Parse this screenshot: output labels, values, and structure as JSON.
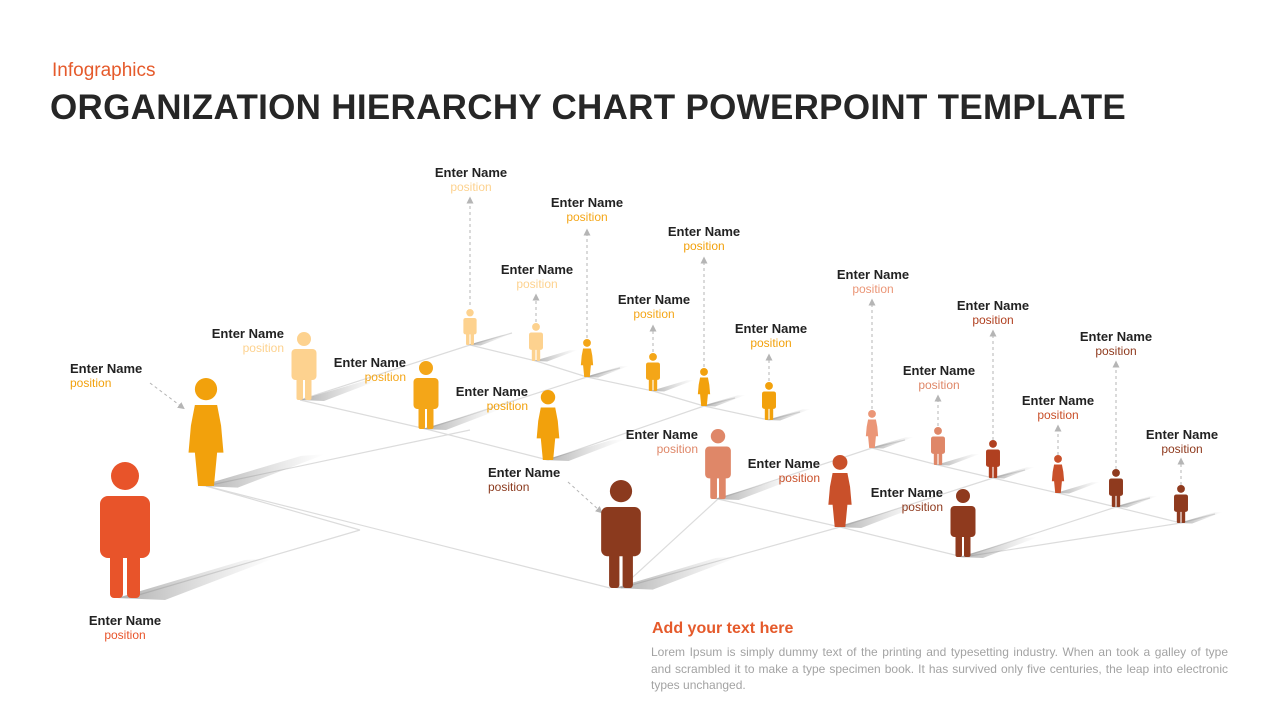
{
  "header": {
    "subtitle": "Infographics",
    "title": "ORGANIZATION HIERARCHY CHART POWERPOINT TEMPLATE"
  },
  "colors": {
    "accent": "#e55a2b",
    "level0": "#e8542a",
    "level1": "#f2a10c",
    "level2_light": "#fdd28f",
    "level2": "#f4a618",
    "ceo_brown": "#8b3a1e",
    "salmon_light": "#eb9677",
    "salmon": "#df8768",
    "rust": "#c9502a",
    "brown_dark": "#8f3a1e"
  },
  "people": [
    {
      "name": "Enter Name",
      "position": "position",
      "color": "#e8542a",
      "gender": "male"
    },
    {
      "name": "Enter Name",
      "position": "position",
      "color": "#f2a10c",
      "gender": "female"
    },
    {
      "name": "Enter Name",
      "position": "position",
      "color": "#fdd28f",
      "gender": "male"
    },
    {
      "name": "Enter Name",
      "position": "position",
      "color": "#f4a618",
      "gender": "male"
    },
    {
      "name": "Enter Name",
      "position": "position",
      "color": "#f2a10c",
      "gender": "female"
    },
    {
      "name": "Enter Name",
      "position": "position",
      "color": "#fdd28f",
      "gender": "male"
    },
    {
      "name": "Enter Name",
      "position": "position",
      "color": "#fdd28f",
      "gender": "male"
    },
    {
      "name": "Enter Name",
      "position": "position",
      "color": "#f4a618",
      "gender": "female"
    },
    {
      "name": "Enter Name",
      "position": "position",
      "color": "#f4a618",
      "gender": "male"
    },
    {
      "name": "Enter Name",
      "position": "position",
      "color": "#f2a10c",
      "gender": "female"
    },
    {
      "name": "Enter Name",
      "position": "position",
      "color": "#f2a10c",
      "gender": "male"
    },
    {
      "name": "Enter Name",
      "position": "position",
      "color": "#8b3a1e",
      "gender": "male"
    },
    {
      "name": "Enter Name",
      "position": "position",
      "color": "#df8768",
      "gender": "male"
    },
    {
      "name": "Enter Name",
      "position": "position",
      "color": "#c9502a",
      "gender": "female"
    },
    {
      "name": "Enter Name",
      "position": "position",
      "color": "#8f3a1e",
      "gender": "male"
    },
    {
      "name": "Enter Name",
      "position": "position",
      "color": "#eb9677",
      "gender": "female"
    },
    {
      "name": "Enter Name",
      "position": "position",
      "color": "#df8768",
      "gender": "male"
    },
    {
      "name": "Enter Name",
      "position": "position",
      "color": "#b04020",
      "gender": "male"
    },
    {
      "name": "Enter Name",
      "position": "position",
      "color": "#c9502a",
      "gender": "female"
    },
    {
      "name": "Enter Name",
      "position": "position",
      "color": "#8f3a1e",
      "gender": "male"
    },
    {
      "name": "Enter Name",
      "position": "position",
      "color": "#8f3a1e",
      "gender": "male"
    }
  ],
  "note": {
    "title": "Add your text here",
    "body": "Lorem Ipsum is simply dummy text of the printing and typesetting industry. When an took a galley of type and scrambled it to make a type specimen book. It has survived only five centuries, the leap into electronic types unchanged."
  }
}
